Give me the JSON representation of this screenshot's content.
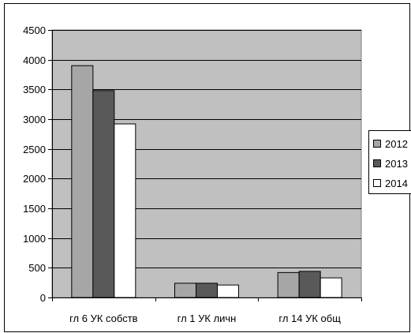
{
  "chart_data": {
    "type": "bar",
    "categories": [
      "гл 6 УК собств",
      "гл 1 УК личн",
      "гл 14 УК общ"
    ],
    "series": [
      {
        "name": "2012",
        "values": [
          3900,
          240,
          420
        ],
        "color": "#a6a6a6"
      },
      {
        "name": "2013",
        "values": [
          3480,
          240,
          440
        ],
        "color": "#595959"
      },
      {
        "name": "2014",
        "values": [
          2920,
          210,
          330
        ],
        "color": "#ffffff"
      }
    ],
    "y_ticks": [
      "0",
      "500",
      "1000",
      "1500",
      "2000",
      "2500",
      "3000",
      "3500",
      "4000",
      "4500"
    ],
    "ylim": [
      0,
      4500
    ],
    "grid": true,
    "legend": "right",
    "plot_background": "#c0c0c0"
  }
}
